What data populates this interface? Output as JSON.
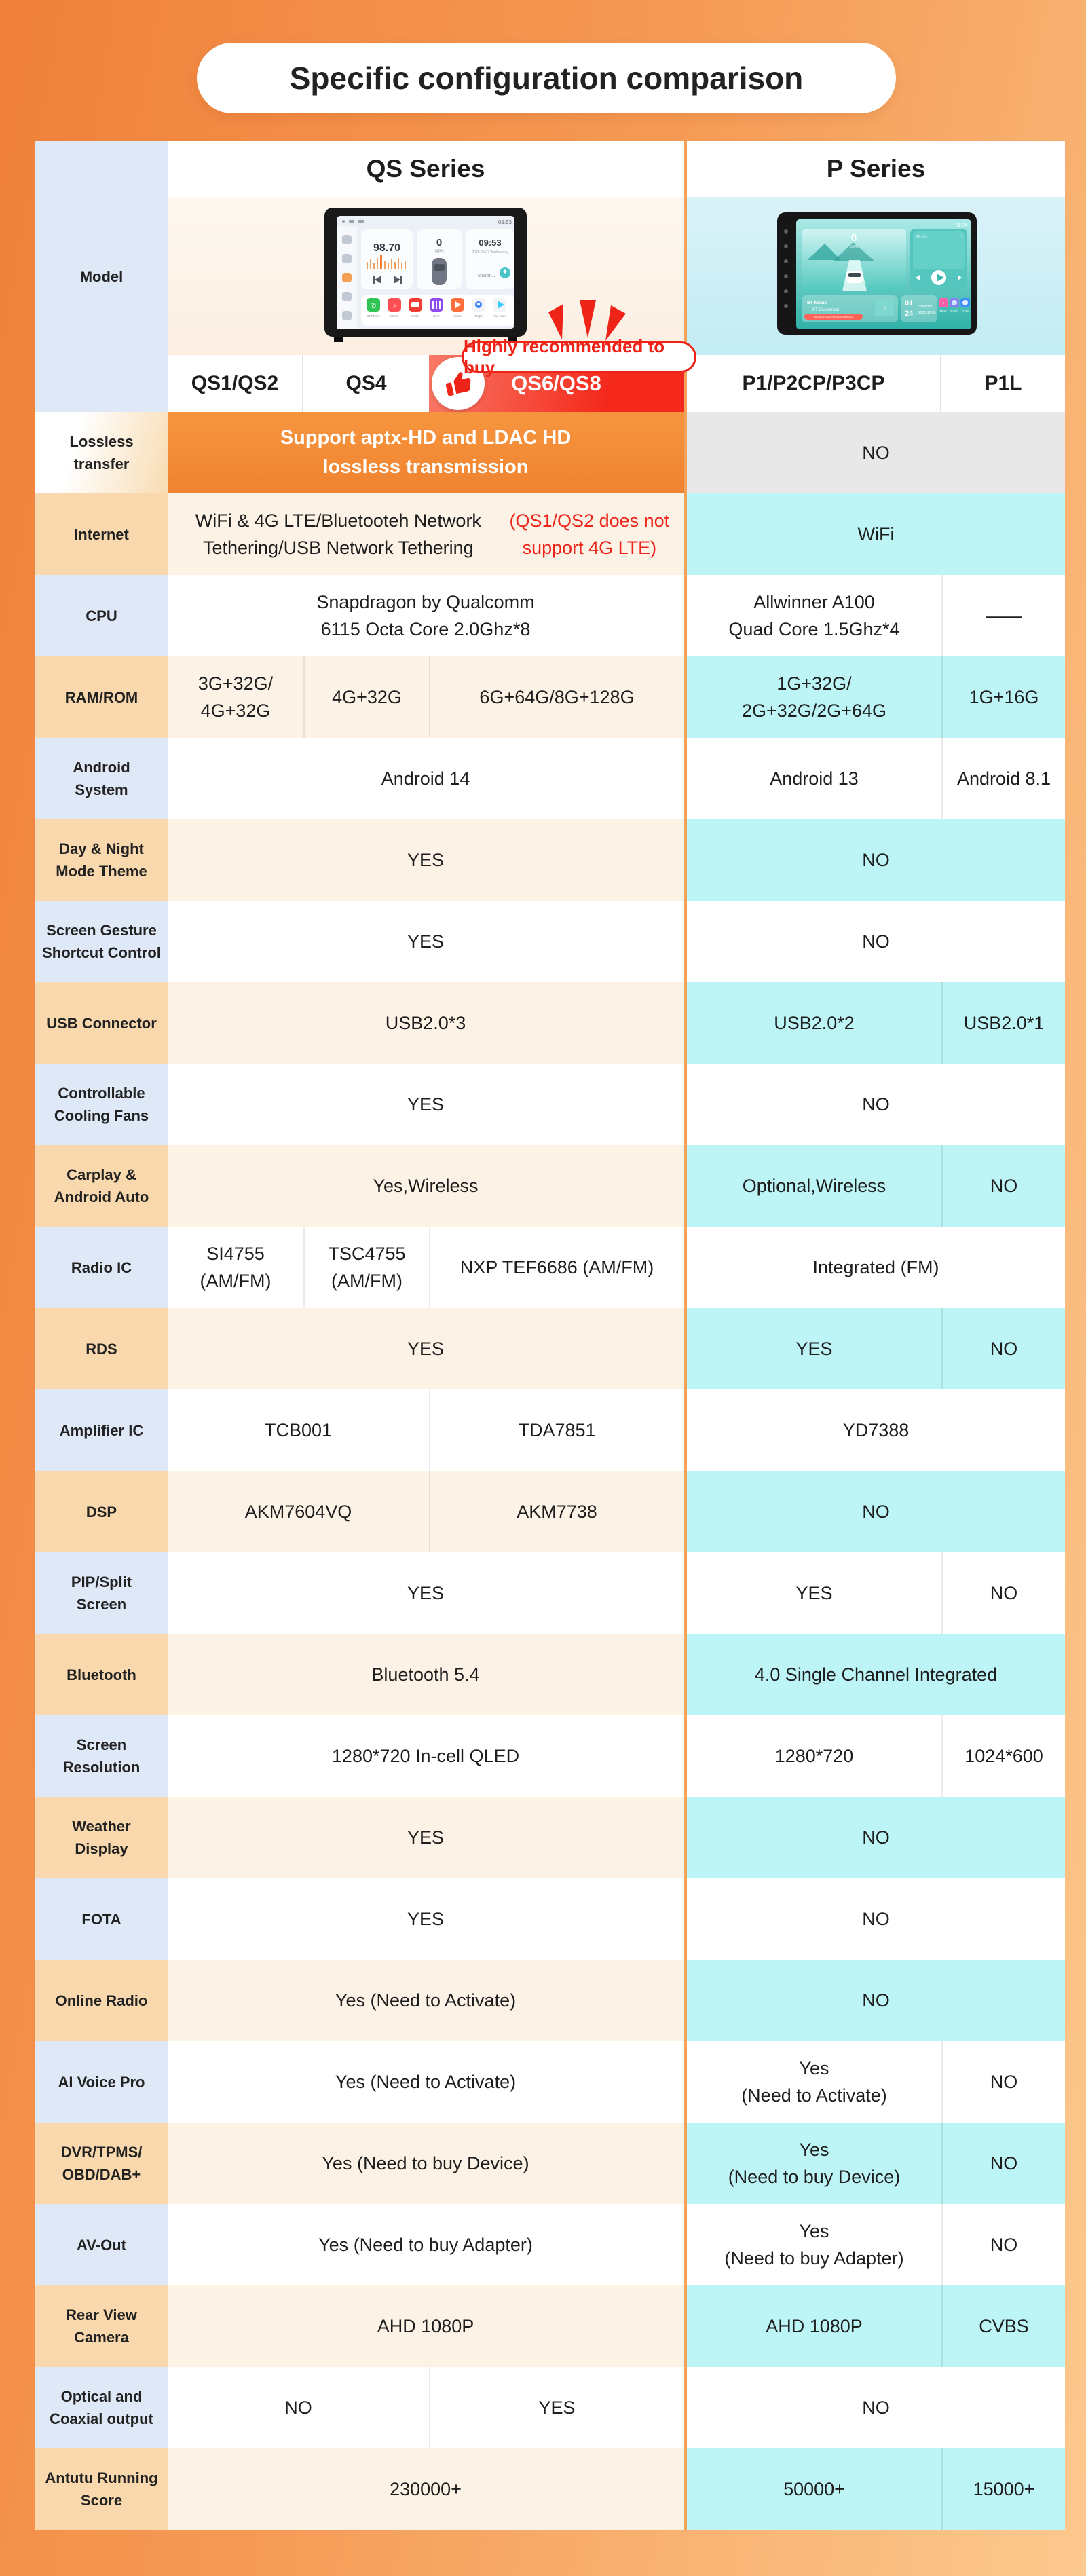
{
  "page_title": "Specific configuration comparison",
  "series": [
    "QS Series",
    "P Series"
  ],
  "model_row": {
    "label": "Model",
    "qs_models": [
      "QS1/QS2",
      "QS4",
      "QS6/QS8"
    ],
    "p_models": [
      "P1/P2CP/P3CP",
      "P1L"
    ],
    "badge": "Highly recommended to buy",
    "qs_device": {
      "freq": "98.70",
      "speed": "0",
      "speed_unit": "MPH",
      "time": "09:53",
      "date": "2025-05-07 Wednesday",
      "city": "Shenzh...",
      "status_time": "09:53",
      "apps": [
        "BT Phone",
        "Music",
        "Radio",
        "DSP",
        "Video",
        "Maps",
        "Play Store"
      ]
    },
    "p_device": {
      "speed": "0",
      "speed_unit": "km/h",
      "music_title": "Music",
      "bt_line1": "BT Music",
      "bt_line2": "BT Disconnect",
      "bt_line3": "Please Connect Your CellPhone",
      "date_day": "01",
      "date_num": "24",
      "date_week": "Saturday",
      "date_full": "2023-12-30",
      "status_time": "01:04",
      "apps": [
        "Music",
        "Radio",
        "ZLINK"
      ]
    }
  },
  "rows": [
    {
      "label": "Lossless\ntransfer",
      "qs": [
        {
          "t": "Support aptx-HD and LDAC HD\nlossless transmission",
          "w": 3
        }
      ],
      "p": [
        {
          "t": "NO",
          "w": 2
        }
      ]
    },
    {
      "label": "Internet",
      "qs": [
        {
          "t": "WiFi & 4G LTE/Bluetooteh Network Tethering/USB Network Tethering ",
          "red": "(QS1/QS2 does not support 4G LTE)",
          "w": 3
        }
      ],
      "p": [
        {
          "t": "WiFi",
          "w": 2
        }
      ]
    },
    {
      "label": "CPU",
      "qs": [
        {
          "t": "Snapdragon by Qualcomm\n6115 Octa Core 2.0Ghz*8",
          "w": 3
        }
      ],
      "p": [
        {
          "t": "Allwinner A100\nQuad Core 1.5Ghz*4",
          "w": 1
        },
        {
          "t": "——",
          "w": 1
        }
      ]
    },
    {
      "label": "RAM/ROM",
      "qs": [
        {
          "t": "3G+32G/\n4G+32G",
          "w": 1
        },
        {
          "t": "4G+32G",
          "w": 1
        },
        {
          "t": "6G+64G/8G+128G",
          "w": 1
        }
      ],
      "p": [
        {
          "t": "1G+32G/\n2G+32G/2G+64G",
          "w": 1
        },
        {
          "t": "1G+16G",
          "w": 1
        }
      ]
    },
    {
      "label": "Android\nSystem",
      "qs": [
        {
          "t": "Android 14",
          "w": 3
        }
      ],
      "p": [
        {
          "t": "Android 13",
          "w": 1
        },
        {
          "t": "Android 8.1",
          "w": 1
        }
      ]
    },
    {
      "label": "Day & Night\nMode Theme",
      "qs": [
        {
          "t": "YES",
          "w": 3
        }
      ],
      "p": [
        {
          "t": "NO",
          "w": 2
        }
      ]
    },
    {
      "label": "Screen Gesture\nShortcut Control",
      "qs": [
        {
          "t": "YES",
          "w": 3
        }
      ],
      "p": [
        {
          "t": "NO",
          "w": 2
        }
      ]
    },
    {
      "label": "USB Connector",
      "qs": [
        {
          "t": "USB2.0*3",
          "w": 3
        }
      ],
      "p": [
        {
          "t": "USB2.0*2",
          "w": 1
        },
        {
          "t": "USB2.0*1",
          "w": 1
        }
      ]
    },
    {
      "label": "Controllable\nCooling Fans",
      "qs": [
        {
          "t": "YES",
          "w": 3
        }
      ],
      "p": [
        {
          "t": "NO",
          "w": 2
        }
      ]
    },
    {
      "label": "Carplay &\nAndroid Auto",
      "qs": [
        {
          "t": "Yes,Wireless",
          "w": 3
        }
      ],
      "p": [
        {
          "t": "Optional,Wireless",
          "w": 1
        },
        {
          "t": "NO",
          "w": 1
        }
      ]
    },
    {
      "label": "Radio IC",
      "qs": [
        {
          "t": "SI4755\n(AM/FM)",
          "w": 1
        },
        {
          "t": "TSC4755\n(AM/FM)",
          "w": 1
        },
        {
          "t": "NXP TEF6686 (AM/FM)",
          "w": 1
        }
      ],
      "p": [
        {
          "t": "Integrated (FM)",
          "w": 2
        }
      ]
    },
    {
      "label": "RDS",
      "qs": [
        {
          "t": "YES",
          "w": 3
        }
      ],
      "p": [
        {
          "t": "YES",
          "w": 1
        },
        {
          "t": "NO",
          "w": 1
        }
      ]
    },
    {
      "label": "Amplifier IC",
      "qs": [
        {
          "t": "TCB001",
          "w": 2
        },
        {
          "t": "TDA7851",
          "w": 1
        }
      ],
      "p": [
        {
          "t": "YD7388",
          "w": 2
        }
      ]
    },
    {
      "label": "DSP",
      "qs": [
        {
          "t": "AKM7604VQ",
          "w": 2
        },
        {
          "t": "AKM7738",
          "w": 1
        }
      ],
      "p": [
        {
          "t": "NO",
          "w": 2
        }
      ]
    },
    {
      "label": "PIP/Split\nScreen",
      "qs": [
        {
          "t": "YES",
          "w": 3
        }
      ],
      "p": [
        {
          "t": "YES",
          "w": 1
        },
        {
          "t": "NO",
          "w": 1
        }
      ]
    },
    {
      "label": "Bluetooth",
      "qs": [
        {
          "t": "Bluetooth 5.4",
          "w": 3
        }
      ],
      "p": [
        {
          "t": "4.0 Single Channel Integrated",
          "w": 2
        }
      ]
    },
    {
      "label": "Screen\nResolution",
      "qs": [
        {
          "t": "1280*720 In-cell QLED",
          "w": 3
        }
      ],
      "p": [
        {
          "t": "1280*720",
          "w": 1
        },
        {
          "t": "1024*600",
          "w": 1
        }
      ]
    },
    {
      "label": "Weather\nDisplay",
      "qs": [
        {
          "t": "YES",
          "w": 3
        }
      ],
      "p": [
        {
          "t": "NO",
          "w": 2
        }
      ]
    },
    {
      "label": "FOTA",
      "qs": [
        {
          "t": "YES",
          "w": 3
        }
      ],
      "p": [
        {
          "t": "NO",
          "w": 2
        }
      ]
    },
    {
      "label": "Online Radio",
      "qs": [
        {
          "t": "Yes (Need to Activate)",
          "w": 3
        }
      ],
      "p": [
        {
          "t": "NO",
          "w": 2
        }
      ]
    },
    {
      "label": "AI Voice Pro",
      "qs": [
        {
          "t": "Yes (Need to Activate)",
          "w": 3
        }
      ],
      "p": [
        {
          "t": "Yes\n(Need to Activate)",
          "w": 1
        },
        {
          "t": "NO",
          "w": 1
        }
      ]
    },
    {
      "label": "DVR/TPMS/\nOBD/DAB+",
      "qs": [
        {
          "t": "Yes (Need to buy Device)",
          "w": 3
        }
      ],
      "p": [
        {
          "t": "Yes\n(Need to buy Device)",
          "w": 1
        },
        {
          "t": "NO",
          "w": 1
        }
      ]
    },
    {
      "label": "AV-Out",
      "qs": [
        {
          "t": "Yes (Need to buy Adapter)",
          "w": 3
        }
      ],
      "p": [
        {
          "t": "Yes\n(Need to buy Adapter)",
          "w": 1
        },
        {
          "t": "NO",
          "w": 1
        }
      ]
    },
    {
      "label": "Rear View\nCamera",
      "qs": [
        {
          "t": "AHD 1080P",
          "w": 3
        }
      ],
      "p": [
        {
          "t": "AHD 1080P",
          "w": 1
        },
        {
          "t": "CVBS",
          "w": 1
        }
      ]
    },
    {
      "label": "Optical and\nCoaxial output",
      "qs": [
        {
          "t": "NO",
          "w": 2
        },
        {
          "t": "YES",
          "w": 1
        }
      ],
      "p": [
        {
          "t": "NO",
          "w": 2
        }
      ]
    },
    {
      "label": "Antutu Running\nScore",
      "qs": [
        {
          "t": "230000+",
          "w": 3
        }
      ],
      "p": [
        {
          "t": "50000+",
          "w": 1
        },
        {
          "t": "15000+",
          "w": 1
        }
      ]
    }
  ],
  "colors": {
    "accent_red": "#ee2418",
    "hero_orange": "#f28a36",
    "qs_tint": "#fdf2e6",
    "p_tint": "#bdf4f6",
    "label_blue": "#dfe8f7",
    "label_peach": "#f8d8ac",
    "no_gray": "#e8e8e8",
    "page_orange": "#f59a55"
  }
}
